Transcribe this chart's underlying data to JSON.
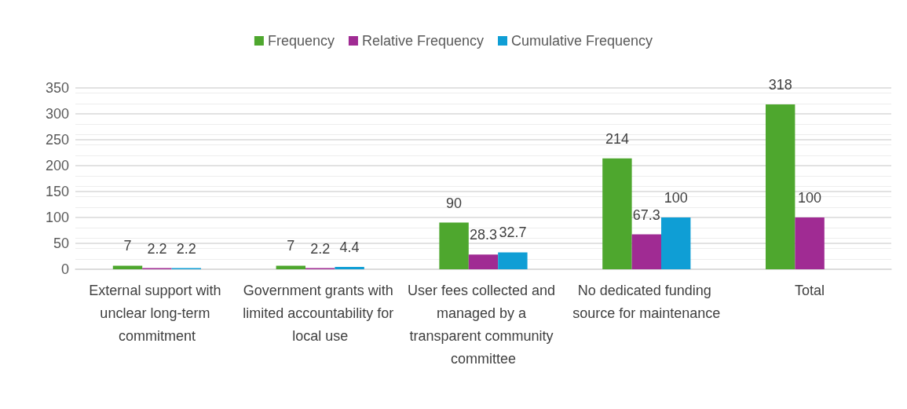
{
  "chart_data": {
    "type": "bar",
    "categories": [
      "External support with unclear long-term commitment",
      "Government grants with limited accountability for local use",
      "User fees collected and managed by a transparent community committee",
      "No dedicated funding source for maintenance",
      "Total"
    ],
    "series": [
      {
        "name": "Frequency",
        "color": "#4ea72e",
        "values": [
          7,
          7,
          90,
          214,
          318
        ]
      },
      {
        "name": "Relative Frequency",
        "color": "#a02b93",
        "values": [
          2.2,
          2.2,
          28.3,
          67.3,
          100
        ]
      },
      {
        "name": "Cumulative Frequency",
        "color": "#0f9ed5",
        "values": [
          2.2,
          4.4,
          32.7,
          100,
          null
        ]
      }
    ],
    "ylim": [
      0,
      350
    ],
    "yticks": [
      0,
      50,
      100,
      150,
      200,
      250,
      300,
      350
    ],
    "grid": "y",
    "legend": "top",
    "data_labels": true
  }
}
